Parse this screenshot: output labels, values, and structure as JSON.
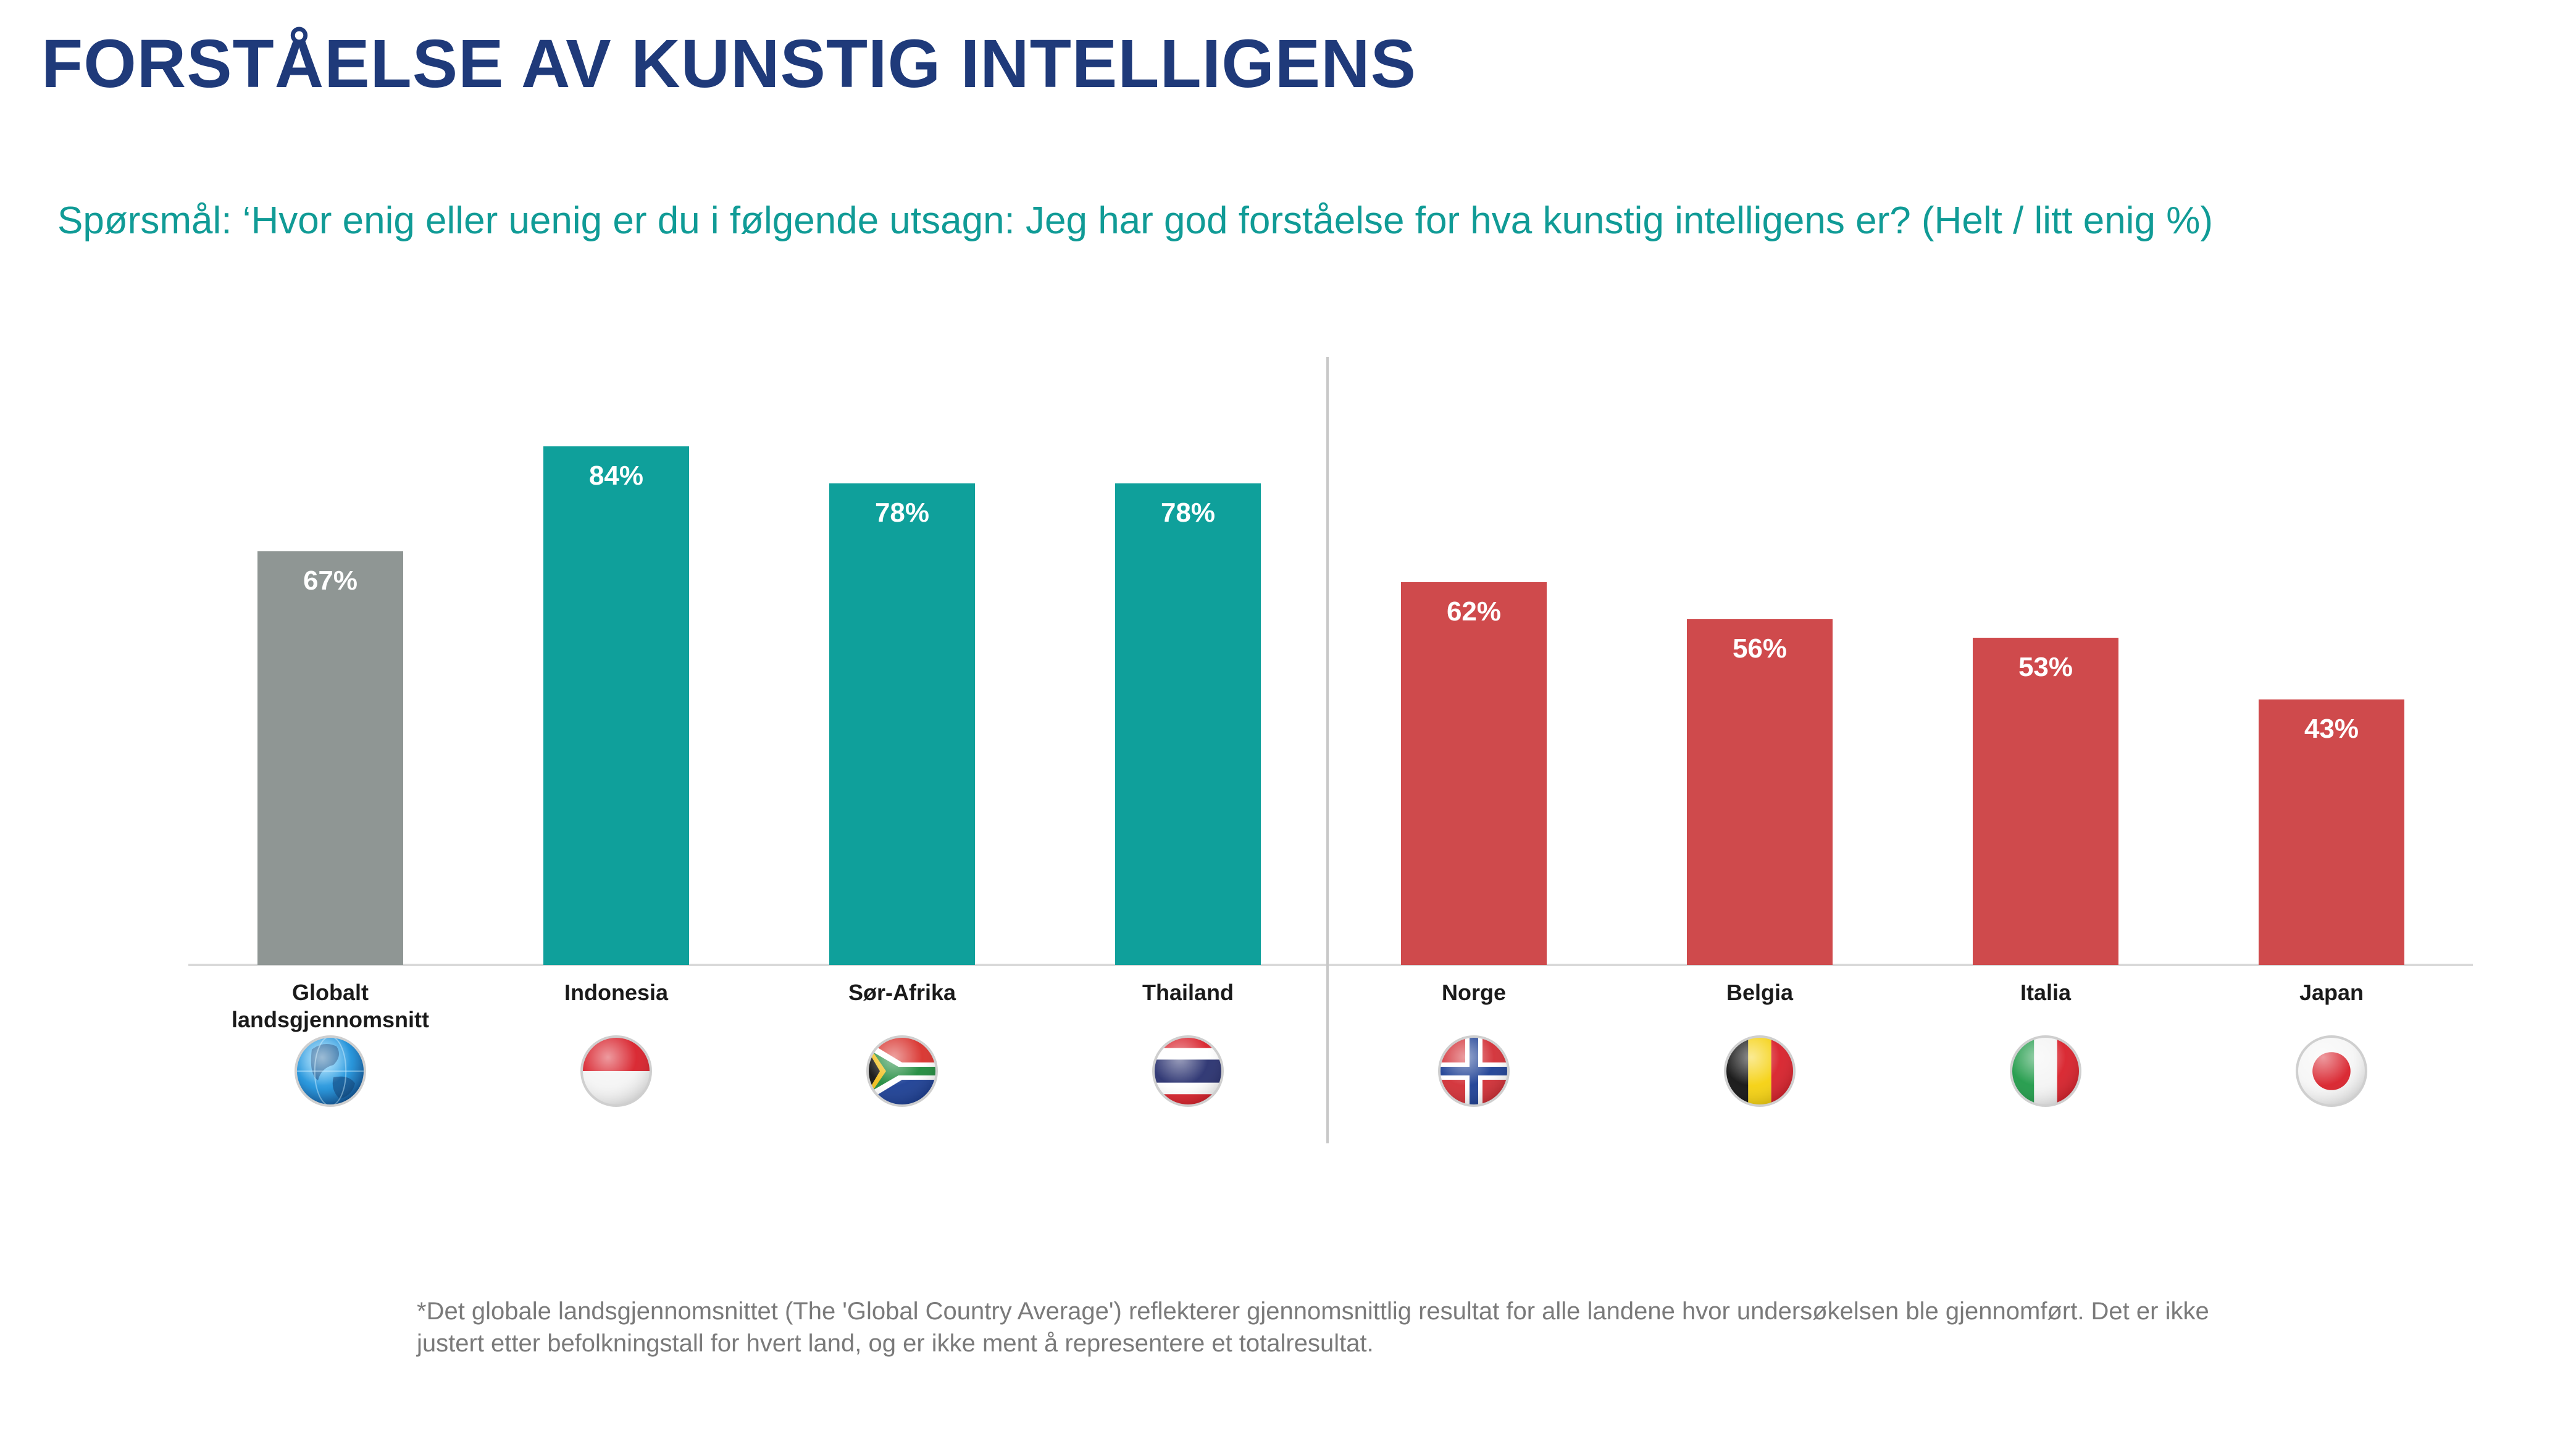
{
  "title": "FORSTÅELSE AV KUNSTIG INTELLIGENS",
  "subtitle": "Spørsmål: ‘Hvor enig eller uenig er du i følgende utsagn: Jeg har god forståelse for hva kunstig intelligens er? (Helt / litt enig %)",
  "footnote": "*Det globale landsgjennomsnittet (The 'Global Country Average') reflekterer gjennomsnittlig resultat for alle landene hvor undersøkelsen ble gjennomført. Det er ikke justert etter befolkningstall for hvert land, og er ikke ment å representere et totalresultat.",
  "colors": {
    "global": "#8f9694",
    "high": "#0fa09b",
    "low": "#cf4a4c",
    "title": "#1f3a7a",
    "subtitle": "#109b96"
  },
  "chart_data": {
    "type": "bar",
    "categories": [
      "Globalt landsgjennomsnitt",
      "Indonesia",
      "Sør-Afrika",
      "Thailand",
      "Norge",
      "Belgia",
      "Italia",
      "Japan"
    ],
    "category_lines": [
      [
        "Globalt",
        "landsgjennomsnitt"
      ],
      [
        "Indonesia"
      ],
      [
        "Sør-Afrika"
      ],
      [
        "Thailand"
      ],
      [
        "Norge"
      ],
      [
        "Belgia"
      ],
      [
        "Italia"
      ],
      [
        "Japan"
      ]
    ],
    "values": [
      67,
      84,
      78,
      78,
      62,
      56,
      53,
      43
    ],
    "value_labels": [
      "67%",
      "84%",
      "78%",
      "78%",
      "62%",
      "56%",
      "53%",
      "43%"
    ],
    "bar_color_groups": [
      "global",
      "high",
      "high",
      "high",
      "low",
      "low",
      "low",
      "low"
    ],
    "icons": [
      "globe-icon",
      "indonesia-flag-icon",
      "south-africa-flag-icon",
      "thailand-flag-icon",
      "norway-flag-icon",
      "belgium-flag-icon",
      "italy-flag-icon",
      "japan-flag-icon"
    ],
    "ylim": [
      0,
      100
    ],
    "grid": false,
    "xlabel": "",
    "ylabel": ""
  }
}
